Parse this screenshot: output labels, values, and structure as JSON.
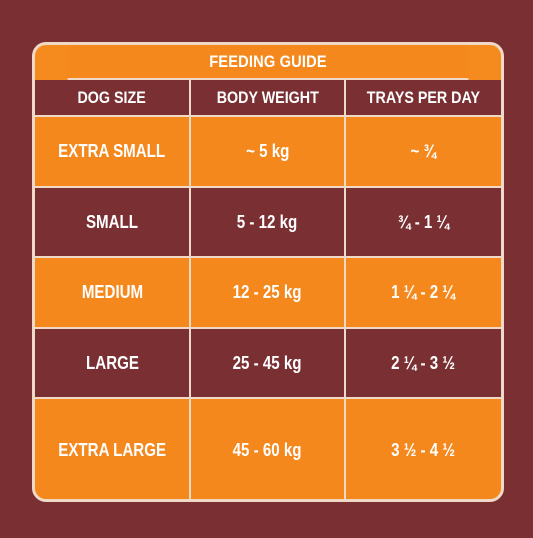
{
  "guide": {
    "title": "FEEDING GUIDE",
    "headers": [
      "DOG SIZE",
      "BODY WEIGHT",
      "TRAYS PER DAY"
    ],
    "rows": [
      {
        "size": "EXTRA SMALL",
        "weight": "~ 5 kg",
        "trays": "~ ¾"
      },
      {
        "size": "SMALL",
        "weight": "5 - 12 kg",
        "trays": "¾ - 1 ¼"
      },
      {
        "size": "MEDIUM",
        "weight": "12 - 25 kg",
        "trays": "1 ¼ - 2 ¼"
      },
      {
        "size": "LARGE",
        "weight": "25 - 45 kg",
        "trays": "2 ¼ - 3 ½"
      },
      {
        "size": "EXTRA LARGE",
        "weight": "45 - 60 kg",
        "trays": "3 ½ - 4 ½"
      }
    ]
  },
  "colors": {
    "background": "#7a2f33",
    "accent": "#f5881d",
    "border": "#f1d9c8",
    "text": "#ffffff"
  }
}
